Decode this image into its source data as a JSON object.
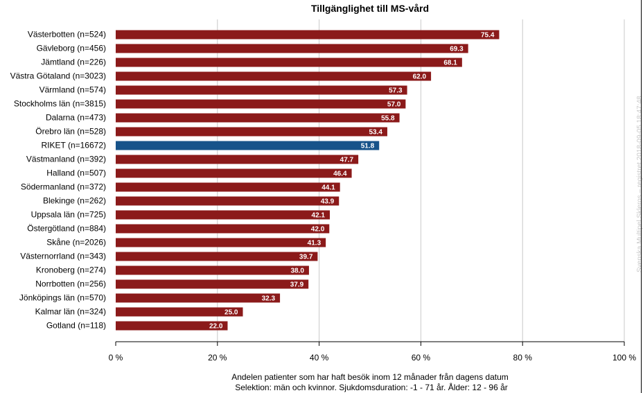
{
  "chart_data": {
    "type": "bar",
    "orientation": "horizontal",
    "title": "Tillgänglighet till MS-vård",
    "categories": [
      "Västerbotten (n=524)",
      "Gävleborg (n=456)",
      "Jämtland (n=226)",
      "Västra Götaland (n=3023)",
      "Värmland (n=574)",
      "Stockholms län (n=3815)",
      "Dalarna (n=473)",
      "Örebro län (n=528)",
      "RIKET (n=16672)",
      "Västmanland (n=392)",
      "Halland (n=507)",
      "Södermanland (n=372)",
      "Blekinge (n=262)",
      "Uppsala län (n=725)",
      "Östergötland (n=884)",
      "Skåne (n=2026)",
      "Västernorrland (n=343)",
      "Kronoberg (n=274)",
      "Norrbotten (n=256)",
      "Jönköpings län (n=570)",
      "Kalmar län (n=324)",
      "Gotland (n=118)"
    ],
    "values": [
      75.4,
      69.3,
      68.1,
      62.0,
      57.3,
      57.0,
      55.8,
      53.4,
      51.8,
      47.7,
      46.4,
      44.1,
      43.9,
      42.1,
      42.0,
      41.3,
      39.7,
      38.0,
      37.9,
      32.3,
      25.0,
      22.0
    ],
    "value_labels": [
      "75.4",
      "69.3",
      "68.1",
      "62.0",
      "57.3",
      "57.0",
      "55.8",
      "53.4",
      "51.8",
      "47.7",
      "46.4",
      "44.1",
      "43.9",
      "42.1",
      "42.0",
      "41.3",
      "39.7",
      "38.0",
      "37.9",
      "32.3",
      "25.0",
      "22.0"
    ],
    "highlight_category": "RIKET (n=16672)",
    "xlim": [
      0,
      100
    ],
    "xticks": [
      0,
      20,
      40,
      60,
      80,
      100
    ],
    "xtick_labels": [
      "0 %",
      "20 %",
      "40 %",
      "60 %",
      "80 %",
      "100 %"
    ],
    "xlabel": "Andelen patienter  som har haft besök inom 12 månader från dagens datum",
    "xlabel_line2": "Selektion: män och kvinnor. Sjukdomsduration: -1 - 71 år. Ålder: 12 - 96 år",
    "grid": true,
    "colors": {
      "bar": "#8b1a1a",
      "highlight": "#17538a",
      "grid": "#c8c8c8",
      "axis": "#000000"
    }
  },
  "watermark": "Svenska Multipel Skleros – registret 2018-09-05 18:47:48"
}
